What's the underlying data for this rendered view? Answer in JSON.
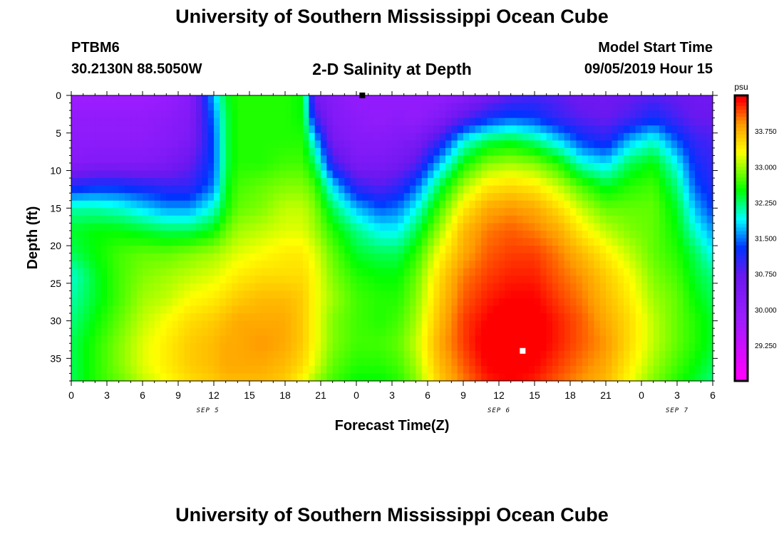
{
  "header": {
    "title": "University of Southern Mississippi Ocean Cube",
    "station_id": "PTBM6",
    "station_coords": "30.2130N 88.5050W",
    "chart_title": "2-D Salinity at Depth",
    "model_start_label": "Model Start Time",
    "model_start_value": "09/05/2019 Hour 15"
  },
  "footer": {
    "title": "University of Southern Mississippi Ocean Cube"
  },
  "chart_data": {
    "type": "heatmap",
    "title": "2-D Salinity at Depth",
    "xlabel": "Forecast Time(Z)",
    "ylabel": "Depth (ft)",
    "x_hours_range": [
      0,
      54
    ],
    "x_tick_hours": [
      0,
      3,
      6,
      9,
      12,
      15,
      18,
      21,
      24,
      27,
      30,
      33,
      36,
      39,
      42,
      45,
      48,
      51,
      54
    ],
    "x_tick_labels": [
      "0",
      "3",
      "6",
      "9",
      "12",
      "15",
      "18",
      "21",
      "0",
      "3",
      "6",
      "9",
      "12",
      "15",
      "18",
      "21",
      "0",
      "3",
      "6"
    ],
    "date_labels": [
      {
        "hour": 11.5,
        "label": "SEP 5"
      },
      {
        "hour": 36,
        "label": "SEP 6"
      },
      {
        "hour": 51,
        "label": "SEP 7"
      }
    ],
    "y_range_ft": [
      0,
      38
    ],
    "y_ticks": [
      0,
      5,
      10,
      15,
      20,
      25,
      30,
      35
    ],
    "colorbar": {
      "unit": "psu",
      "range": [
        28.5,
        34.5
      ],
      "tick_values": [
        33.75,
        33.0,
        32.25,
        31.5,
        30.75,
        30.0,
        29.25
      ],
      "tick_labels": [
        "33.750",
        "33.000",
        "32.250",
        "31.500",
        "30.750",
        "30.000",
        "29.250"
      ],
      "stops": [
        {
          "value": 28.6,
          "color": "#ff00ff"
        },
        {
          "value": 29.8,
          "color": "#9e1cff"
        },
        {
          "value": 30.7,
          "color": "#6a18f0"
        },
        {
          "value": 31.3,
          "color": "#0033ff"
        },
        {
          "value": 31.9,
          "color": "#00ffff"
        },
        {
          "value": 32.5,
          "color": "#00ff00"
        },
        {
          "value": 33.3,
          "color": "#ffff00"
        },
        {
          "value": 33.9,
          "color": "#ff9900"
        },
        {
          "value": 34.4,
          "color": "#ff0000"
        }
      ]
    },
    "x_hours": [
      0,
      2,
      4,
      6,
      8,
      10,
      12,
      13,
      14,
      16,
      18,
      19.5,
      20.5,
      22,
      24,
      26,
      27.5,
      29,
      31,
      33,
      35,
      37,
      39,
      41,
      43,
      45,
      47,
      49,
      51,
      52.5,
      54
    ],
    "depths_ft": [
      0,
      3,
      6,
      9,
      12,
      15,
      18,
      21,
      24,
      27,
      30,
      33,
      36,
      38
    ],
    "salinity_psu": [
      [
        29.8,
        29.8,
        29.8,
        29.8,
        29.9,
        30.2,
        31.7,
        32.4,
        32.6,
        32.6,
        32.6,
        32.5,
        30.5,
        30.2,
        30.0,
        30.0,
        30.0,
        30.0,
        30.0,
        30.2,
        30.5,
        30.8,
        30.9,
        30.8,
        30.6,
        30.6,
        30.7,
        30.8,
        30.7,
        30.6,
        30.6
      ],
      [
        30.0,
        30.0,
        30.0,
        30.0,
        30.1,
        30.3,
        31.5,
        32.3,
        32.6,
        32.6,
        32.6,
        32.5,
        31.0,
        30.3,
        30.1,
        30.0,
        30.1,
        30.0,
        30.3,
        30.8,
        31.2,
        31.4,
        31.3,
        31.0,
        30.8,
        30.7,
        30.9,
        31.2,
        30.9,
        30.7,
        30.7
      ],
      [
        30.1,
        30.1,
        30.1,
        30.1,
        30.2,
        30.4,
        31.4,
        32.3,
        32.6,
        32.6,
        32.6,
        32.6,
        31.8,
        30.5,
        30.2,
        30.2,
        30.3,
        30.4,
        31.0,
        31.9,
        32.3,
        32.4,
        32.2,
        31.8,
        31.3,
        31.1,
        31.7,
        32.0,
        31.4,
        31.0,
        30.9
      ],
      [
        30.2,
        30.3,
        30.3,
        30.3,
        30.4,
        30.7,
        31.4,
        32.3,
        32.6,
        32.6,
        32.7,
        32.7,
        32.3,
        31.0,
        30.4,
        30.4,
        30.5,
        30.8,
        31.7,
        32.5,
        32.9,
        33.0,
        32.9,
        32.6,
        32.0,
        31.8,
        32.3,
        32.5,
        31.9,
        31.2,
        31.0
      ],
      [
        31.1,
        31.2,
        31.2,
        31.1,
        31.0,
        31.0,
        31.5,
        32.4,
        32.7,
        32.8,
        32.9,
        32.9,
        32.7,
        31.8,
        31.0,
        30.8,
        31.0,
        31.4,
        32.3,
        33.0,
        33.4,
        33.5,
        33.4,
        33.1,
        32.7,
        32.4,
        32.6,
        32.7,
        32.2,
        31.4,
        31.1
      ],
      [
        32.1,
        32.1,
        32.0,
        31.8,
        31.6,
        31.6,
        32.0,
        32.5,
        32.8,
        32.9,
        33.1,
        33.1,
        32.9,
        32.3,
        31.7,
        31.4,
        31.5,
        31.9,
        32.7,
        33.4,
        33.8,
        33.9,
        33.8,
        33.5,
        33.1,
        32.8,
        32.8,
        32.8,
        32.4,
        31.7,
        31.3
      ],
      [
        32.4,
        32.5,
        32.5,
        32.4,
        32.3,
        32.3,
        32.5,
        32.8,
        33.0,
        33.1,
        33.2,
        33.2,
        33.0,
        32.6,
        32.2,
        31.9,
        31.9,
        32.3,
        33.0,
        33.7,
        34.0,
        34.1,
        34.0,
        33.8,
        33.4,
        33.1,
        32.9,
        32.8,
        32.5,
        32.0,
        31.6
      ],
      [
        32.3,
        32.5,
        32.7,
        32.8,
        32.8,
        32.9,
        33.0,
        33.1,
        33.2,
        33.3,
        33.4,
        33.4,
        33.2,
        32.8,
        32.4,
        32.3,
        32.3,
        32.6,
        33.3,
        33.8,
        34.1,
        34.2,
        34.2,
        34.0,
        33.7,
        33.4,
        33.1,
        32.8,
        32.6,
        32.3,
        31.9
      ],
      [
        32.0,
        32.4,
        32.7,
        32.9,
        33.0,
        33.1,
        33.2,
        33.3,
        33.4,
        33.5,
        33.5,
        33.5,
        33.3,
        32.9,
        32.6,
        32.5,
        32.5,
        32.8,
        33.5,
        34.0,
        34.2,
        34.3,
        34.3,
        34.1,
        33.9,
        33.6,
        33.3,
        32.9,
        32.7,
        32.4,
        32.2
      ],
      [
        32.1,
        32.4,
        32.7,
        33.0,
        33.1,
        33.3,
        33.4,
        33.5,
        33.6,
        33.7,
        33.7,
        33.6,
        33.3,
        33.0,
        32.7,
        32.6,
        32.6,
        32.9,
        33.6,
        34.1,
        34.3,
        34.4,
        34.4,
        34.2,
        34.0,
        33.7,
        33.4,
        33.0,
        32.8,
        32.5,
        32.3
      ],
      [
        32.2,
        32.5,
        32.8,
        33.1,
        33.3,
        33.5,
        33.6,
        33.7,
        33.8,
        33.8,
        33.8,
        33.6,
        33.3,
        32.9,
        32.7,
        32.6,
        32.7,
        33.0,
        33.7,
        34.2,
        34.4,
        34.6,
        34.5,
        34.3,
        34.1,
        33.8,
        33.5,
        33.1,
        32.8,
        32.6,
        32.4
      ],
      [
        32.3,
        32.6,
        32.9,
        33.2,
        33.4,
        33.6,
        33.7,
        33.8,
        33.8,
        33.9,
        33.8,
        33.6,
        33.3,
        32.9,
        32.7,
        32.7,
        32.8,
        33.1,
        33.8,
        34.2,
        34.5,
        34.6,
        34.5,
        34.3,
        34.1,
        33.9,
        33.5,
        33.1,
        32.8,
        32.6,
        32.4
      ],
      [
        32.3,
        32.6,
        32.9,
        33.2,
        33.4,
        33.6,
        33.7,
        33.8,
        33.8,
        33.8,
        33.7,
        33.5,
        33.2,
        32.8,
        32.6,
        32.6,
        32.7,
        33.0,
        33.7,
        34.1,
        34.4,
        34.5,
        34.4,
        34.2,
        34.0,
        33.8,
        33.4,
        33.0,
        32.7,
        32.5,
        32.3
      ],
      [
        32.3,
        32.6,
        32.8,
        33.1,
        33.3,
        33.5,
        33.6,
        33.7,
        33.7,
        33.7,
        33.6,
        33.3,
        33.0,
        32.7,
        32.5,
        32.5,
        32.6,
        32.9,
        33.6,
        34.0,
        34.3,
        34.4,
        34.3,
        34.1,
        33.9,
        33.7,
        33.3,
        32.9,
        32.6,
        32.4,
        32.2
      ]
    ],
    "markers": [
      {
        "hour": 24.5,
        "depth_ft": 0,
        "color": "#000000"
      },
      {
        "hour": 38,
        "depth_ft": 34,
        "color": "#ffffff"
      }
    ]
  }
}
